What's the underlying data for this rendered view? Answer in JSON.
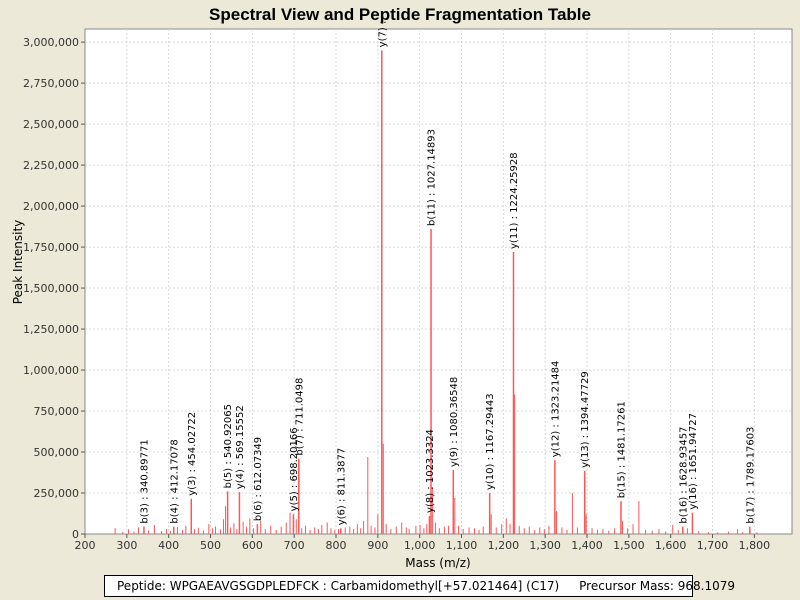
{
  "chart_data": {
    "type": "bar",
    "title": "Spectral View and Peptide Fragmentation Table",
    "xlabel": "Mass (m/z)",
    "ylabel": "Peak Intensity",
    "xlim": [
      200,
      1890
    ],
    "ylim": [
      0,
      3080000
    ],
    "x_ticks": [
      200,
      300,
      400,
      500,
      600,
      700,
      800,
      900,
      1000,
      1100,
      1200,
      1300,
      1400,
      1500,
      1600,
      1700,
      1800
    ],
    "x_tick_labels": [
      "200",
      "300",
      "400",
      "500",
      "600",
      "700",
      "800",
      "900",
      "1,000",
      "1,100",
      "1,200",
      "1,300",
      "1,400",
      "1,500",
      "1,600",
      "1,700",
      "1,800"
    ],
    "y_ticks": [
      0,
      250000,
      500000,
      750000,
      1000000,
      1250000,
      1500000,
      1750000,
      2000000,
      2250000,
      2500000,
      2750000,
      3000000
    ],
    "y_tick_labels": [
      "0",
      "250,000",
      "500,000",
      "750,000",
      "1,000,000",
      "1,250,000",
      "1,500,000",
      "1,750,000",
      "2,000,000",
      "2,250,000",
      "2,500,000",
      "2,750,000",
      "3,000,000"
    ],
    "grid": true,
    "peak_color": "#ff5555",
    "annotated_peaks": [
      {
        "mz": 340.89771,
        "intensity": 45000,
        "label": "b(3) : 340.89771"
      },
      {
        "mz": 412.17078,
        "intensity": 45000,
        "label": "b(4) : 412.17078"
      },
      {
        "mz": 454.02722,
        "intensity": 215000,
        "label": "y(3) : 454.02722"
      },
      {
        "mz": 540.92065,
        "intensity": 260000,
        "label": "b(5) : 540.92065"
      },
      {
        "mz": 569.15552,
        "intensity": 255000,
        "label": "y(4) : 569.15552"
      },
      {
        "mz": 612.07349,
        "intensity": 60000,
        "label": "b(6) : 612.07349"
      },
      {
        "mz": 698.20166,
        "intensity": 120000,
        "label": "y(5) : 698.20166"
      },
      {
        "mz": 711.0498,
        "intensity": 460000,
        "label": "b(7) : 711.0498"
      },
      {
        "mz": 811.3877,
        "intensity": 35000,
        "label": "y(6) : 811.3877"
      },
      {
        "mz": 909.5,
        "intensity": 2950000,
        "label": "y(7) :"
      },
      {
        "mz": 1023.3324,
        "intensity": 110000,
        "label": "y(8) : 1023.3324"
      },
      {
        "mz": 1027.14893,
        "intensity": 1860000,
        "label": "b(11) : 1027.14893"
      },
      {
        "mz": 1080.36548,
        "intensity": 390000,
        "label": "y(9) : 1080.36548"
      },
      {
        "mz": 1167.29443,
        "intensity": 250000,
        "label": "y(10) : 1167.29443"
      },
      {
        "mz": 1224.25928,
        "intensity": 1720000,
        "label": "y(11) : 1224.25928"
      },
      {
        "mz": 1323.21484,
        "intensity": 450000,
        "label": "y(12) : 1323.21484"
      },
      {
        "mz": 1394.47729,
        "intensity": 385000,
        "label": "y(13) : 1394.47729"
      },
      {
        "mz": 1481.17261,
        "intensity": 200000,
        "label": "b(15) : 1481.17261"
      },
      {
        "mz": 1628.93457,
        "intensity": 45000,
        "label": "b(16) : 1628.93457"
      },
      {
        "mz": 1651.94727,
        "intensity": 130000,
        "label": "y(16) : 1651.94727"
      },
      {
        "mz": 1789.17603,
        "intensity": 45000,
        "label": "b(17) : 1789.17603"
      }
    ],
    "other_peaks": [
      {
        "mz": 272,
        "intensity": 35000
      },
      {
        "mz": 290,
        "intensity": 12000
      },
      {
        "mz": 304,
        "intensity": 28000
      },
      {
        "mz": 317,
        "intensity": 15000
      },
      {
        "mz": 328,
        "intensity": 40000
      },
      {
        "mz": 352,
        "intensity": 22000
      },
      {
        "mz": 366,
        "intensity": 55000
      },
      {
        "mz": 383,
        "intensity": 18000
      },
      {
        "mz": 395,
        "intensity": 30000
      },
      {
        "mz": 404,
        "intensity": 20000
      },
      {
        "mz": 421,
        "intensity": 42000
      },
      {
        "mz": 433,
        "intensity": 25000
      },
      {
        "mz": 441,
        "intensity": 50000
      },
      {
        "mz": 462,
        "intensity": 30000
      },
      {
        "mz": 471,
        "intensity": 38000
      },
      {
        "mz": 483,
        "intensity": 22000
      },
      {
        "mz": 496,
        "intensity": 60000
      },
      {
        "mz": 505,
        "intensity": 35000
      },
      {
        "mz": 512,
        "intensity": 45000
      },
      {
        "mz": 524,
        "intensity": 28000
      },
      {
        "mz": 531,
        "intensity": 90000
      },
      {
        "mz": 536,
        "intensity": 170000
      },
      {
        "mz": 548,
        "intensity": 40000
      },
      {
        "mz": 556,
        "intensity": 65000
      },
      {
        "mz": 563,
        "intensity": 30000
      },
      {
        "mz": 578,
        "intensity": 75000
      },
      {
        "mz": 586,
        "intensity": 45000
      },
      {
        "mz": 594,
        "intensity": 95000
      },
      {
        "mz": 603,
        "intensity": 35000
      },
      {
        "mz": 620,
        "intensity": 80000
      },
      {
        "mz": 631,
        "intensity": 30000
      },
      {
        "mz": 644,
        "intensity": 50000
      },
      {
        "mz": 657,
        "intensity": 25000
      },
      {
        "mz": 669,
        "intensity": 45000
      },
      {
        "mz": 681,
        "intensity": 70000
      },
      {
        "mz": 690,
        "intensity": 130000
      },
      {
        "mz": 705,
        "intensity": 90000
      },
      {
        "mz": 718,
        "intensity": 35000
      },
      {
        "mz": 727,
        "intensity": 50000
      },
      {
        "mz": 738,
        "intensity": 25000
      },
      {
        "mz": 749,
        "intensity": 40000
      },
      {
        "mz": 758,
        "intensity": 30000
      },
      {
        "mz": 766,
        "intensity": 55000
      },
      {
        "mz": 779,
        "intensity": 70000
      },
      {
        "mz": 788,
        "intensity": 35000
      },
      {
        "mz": 797,
        "intensity": 25000
      },
      {
        "mz": 806,
        "intensity": 30000
      },
      {
        "mz": 822,
        "intensity": 40000
      },
      {
        "mz": 833,
        "intensity": 45000
      },
      {
        "mz": 842,
        "intensity": 30000
      },
      {
        "mz": 851,
        "intensity": 60000
      },
      {
        "mz": 859,
        "intensity": 35000
      },
      {
        "mz": 866,
        "intensity": 80000
      },
      {
        "mz": 876,
        "intensity": 470000
      },
      {
        "mz": 884,
        "intensity": 50000
      },
      {
        "mz": 893,
        "intensity": 40000
      },
      {
        "mz": 900,
        "intensity": 120000
      },
      {
        "mz": 913,
        "intensity": 550000
      },
      {
        "mz": 920,
        "intensity": 60000
      },
      {
        "mz": 931,
        "intensity": 30000
      },
      {
        "mz": 944,
        "intensity": 45000
      },
      {
        "mz": 957,
        "intensity": 70000
      },
      {
        "mz": 968,
        "intensity": 40000
      },
      {
        "mz": 975,
        "intensity": 30000
      },
      {
        "mz": 991,
        "intensity": 50000
      },
      {
        "mz": 1001,
        "intensity": 55000
      },
      {
        "mz": 1010,
        "intensity": 35000
      },
      {
        "mz": 1017,
        "intensity": 60000
      },
      {
        "mz": 1031,
        "intensity": 280000
      },
      {
        "mz": 1038,
        "intensity": 70000
      },
      {
        "mz": 1047,
        "intensity": 35000
      },
      {
        "mz": 1059,
        "intensity": 45000
      },
      {
        "mz": 1069,
        "intensity": 50000
      },
      {
        "mz": 1084,
        "intensity": 220000
      },
      {
        "mz": 1093,
        "intensity": 50000
      },
      {
        "mz": 1104,
        "intensity": 30000
      },
      {
        "mz": 1118,
        "intensity": 40000
      },
      {
        "mz": 1131,
        "intensity": 35000
      },
      {
        "mz": 1142,
        "intensity": 25000
      },
      {
        "mz": 1152,
        "intensity": 45000
      },
      {
        "mz": 1171,
        "intensity": 120000
      },
      {
        "mz": 1183,
        "intensity": 40000
      },
      {
        "mz": 1196,
        "intensity": 60000
      },
      {
        "mz": 1207,
        "intensity": 95000
      },
      {
        "mz": 1216,
        "intensity": 60000
      },
      {
        "mz": 1227,
        "intensity": 850000
      },
      {
        "mz": 1238,
        "intensity": 50000
      },
      {
        "mz": 1250,
        "intensity": 35000
      },
      {
        "mz": 1262,
        "intensity": 45000
      },
      {
        "mz": 1275,
        "intensity": 25000
      },
      {
        "mz": 1287,
        "intensity": 40000
      },
      {
        "mz": 1298,
        "intensity": 30000
      },
      {
        "mz": 1309,
        "intensity": 50000
      },
      {
        "mz": 1327,
        "intensity": 140000
      },
      {
        "mz": 1340,
        "intensity": 40000
      },
      {
        "mz": 1352,
        "intensity": 25000
      },
      {
        "mz": 1365,
        "intensity": 250000
      },
      {
        "mz": 1377,
        "intensity": 40000
      },
      {
        "mz": 1398,
        "intensity": 120000
      },
      {
        "mz": 1412,
        "intensity": 35000
      },
      {
        "mz": 1425,
        "intensity": 25000
      },
      {
        "mz": 1438,
        "intensity": 30000
      },
      {
        "mz": 1452,
        "intensity": 20000
      },
      {
        "mz": 1466,
        "intensity": 35000
      },
      {
        "mz": 1485,
        "intensity": 80000
      },
      {
        "mz": 1497,
        "intensity": 35000
      },
      {
        "mz": 1510,
        "intensity": 60000
      },
      {
        "mz": 1524,
        "intensity": 200000
      },
      {
        "mz": 1540,
        "intensity": 25000
      },
      {
        "mz": 1556,
        "intensity": 20000
      },
      {
        "mz": 1572,
        "intensity": 30000
      },
      {
        "mz": 1588,
        "intensity": 15000
      },
      {
        "mz": 1605,
        "intensity": 55000
      },
      {
        "mz": 1618,
        "intensity": 25000
      },
      {
        "mz": 1640,
        "intensity": 35000
      },
      {
        "mz": 1667,
        "intensity": 18000
      },
      {
        "mz": 1690,
        "intensity": 12000
      },
      {
        "mz": 1712,
        "intensity": 10000
      },
      {
        "mz": 1738,
        "intensity": 15000
      },
      {
        "mz": 1760,
        "intensity": 30000
      },
      {
        "mz": 1772,
        "intensity": 12000
      },
      {
        "mz": 1806,
        "intensity": 10000
      }
    ]
  },
  "footer": {
    "peptide": "Peptide: WPGAEAVGSGDPLEDFCK : Carbamidomethyl[+57.021464] (C17)",
    "precursor": "Precursor Mass: 968.1079"
  }
}
